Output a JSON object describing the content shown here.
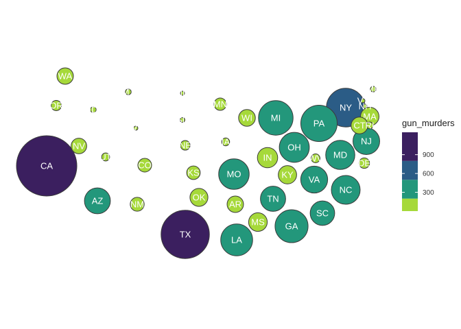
{
  "chart_data": {
    "type": "bubble-map",
    "title": "",
    "size_variable": "gun_murders",
    "legend": {
      "title": "gun_murders",
      "breaks": [
        300,
        600,
        900
      ],
      "break_labels": [
        "300",
        "600",
        "900"
      ],
      "placement": "right",
      "colors": [
        {
          "from": 0,
          "to": 200,
          "color": "#a6d93a"
        },
        {
          "from": 200,
          "to": 500,
          "color": "#23977b"
        },
        {
          "from": 500,
          "to": 800,
          "color": "#2b5c86"
        },
        {
          "from": 800,
          "to": 1300,
          "color": "#3b1f5f"
        }
      ]
    },
    "grid": false,
    "states": [
      {
        "abbr": "WA",
        "value": 93
      },
      {
        "abbr": "OR",
        "value": 36
      },
      {
        "abbr": "ID",
        "value": 12
      },
      {
        "abbr": "MT",
        "value": 12
      },
      {
        "abbr": "ND",
        "value": 4
      },
      {
        "abbr": "MN",
        "value": 53
      },
      {
        "abbr": "WI",
        "value": 97
      },
      {
        "abbr": "MI",
        "value": 413
      },
      {
        "abbr": "NY",
        "value": 517
      },
      {
        "abbr": "VT",
        "value": 2
      },
      {
        "abbr": "NH",
        "value": 5
      },
      {
        "abbr": "ME",
        "value": 11
      },
      {
        "abbr": "MA",
        "value": 118
      },
      {
        "abbr": "CT",
        "value": 97
      },
      {
        "abbr": "RI",
        "value": 16
      },
      {
        "abbr": "NV",
        "value": 84
      },
      {
        "abbr": "UT",
        "value": 22
      },
      {
        "abbr": "WY",
        "value": 5
      },
      {
        "abbr": "SD",
        "value": 8
      },
      {
        "abbr": "NE",
        "value": 32
      },
      {
        "abbr": "IA",
        "value": 21
      },
      {
        "abbr": "PA",
        "value": 457
      },
      {
        "abbr": "NJ",
        "value": 246
      },
      {
        "abbr": "CA",
        "value": 1257
      },
      {
        "abbr": "CO",
        "value": 65
      },
      {
        "abbr": "KS",
        "value": 63
      },
      {
        "abbr": "MO",
        "value": 321
      },
      {
        "abbr": "IN",
        "value": 142
      },
      {
        "abbr": "OH",
        "value": 310
      },
      {
        "abbr": "WV",
        "value": 27
      },
      {
        "abbr": "MD",
        "value": 293
      },
      {
        "abbr": "DE",
        "value": 38
      },
      {
        "abbr": "AZ",
        "value": 232
      },
      {
        "abbr": "NM",
        "value": 67
      },
      {
        "abbr": "OK",
        "value": 111
      },
      {
        "abbr": "KY",
        "value": 116
      },
      {
        "abbr": "VA",
        "value": 250
      },
      {
        "abbr": "NC",
        "value": 286
      },
      {
        "abbr": "TN",
        "value": 219
      },
      {
        "abbr": "AR",
        "value": 93
      },
      {
        "abbr": "SC",
        "value": 207
      },
      {
        "abbr": "GA",
        "value": 376
      },
      {
        "abbr": "MS",
        "value": 120
      },
      {
        "abbr": "LA",
        "value": 351
      },
      {
        "abbr": "TX",
        "value": 805
      }
    ]
  }
}
